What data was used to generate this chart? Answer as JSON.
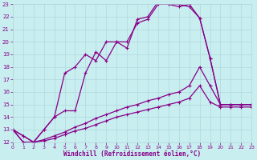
{
  "xlabel": "Windchill (Refroidissement éolien,°C)",
  "xlim": [
    0,
    23
  ],
  "ylim": [
    12,
    23
  ],
  "bg_color": "#c8eef0",
  "grid_color": "#b0d8dc",
  "line_color": "#880088",
  "line1_x": [
    0,
    1,
    2,
    3,
    4,
    5,
    6,
    7,
    8,
    9,
    10,
    11,
    12,
    13,
    14,
    15,
    16,
    17,
    18,
    19,
    20,
    21,
    22,
    23
  ],
  "line1_y": [
    13.0,
    12.5,
    12.0,
    13.0,
    14.0,
    17.5,
    18.0,
    19.0,
    18.5,
    20.0,
    20.0,
    19.5,
    21.8,
    22.0,
    23.2,
    23.0,
    22.8,
    23.0,
    21.9,
    18.7,
    15.0,
    15.0,
    15.0,
    15.0
  ],
  "line2_x": [
    0,
    1,
    2,
    3,
    4,
    5,
    6,
    7,
    8,
    9,
    10,
    11,
    12,
    13,
    14,
    15,
    16,
    17,
    18,
    19,
    20,
    21,
    22,
    23
  ],
  "line2_y": [
    13.0,
    12.5,
    12.0,
    13.0,
    14.0,
    14.5,
    14.5,
    17.5,
    19.2,
    18.5,
    20.0,
    20.0,
    21.5,
    21.8,
    23.0,
    23.0,
    23.0,
    22.8,
    21.9,
    18.7,
    15.0,
    15.0,
    15.0,
    15.0
  ],
  "line3_x": [
    0,
    1,
    2,
    3,
    4,
    5,
    6,
    7,
    8,
    9,
    10,
    11,
    12,
    13,
    14,
    15,
    16,
    17,
    18,
    19,
    20,
    21,
    22,
    23
  ],
  "line3_y": [
    13.0,
    12.0,
    12.0,
    12.2,
    12.5,
    12.8,
    13.2,
    13.5,
    13.9,
    14.2,
    14.5,
    14.8,
    15.0,
    15.3,
    15.5,
    15.8,
    16.0,
    16.5,
    18.0,
    16.5,
    15.0,
    15.0,
    15.0,
    15.0
  ],
  "line4_x": [
    0,
    1,
    2,
    3,
    4,
    5,
    6,
    7,
    8,
    9,
    10,
    11,
    12,
    13,
    14,
    15,
    16,
    17,
    18,
    19,
    20,
    21,
    22,
    23
  ],
  "line4_y": [
    13.0,
    12.0,
    12.0,
    12.1,
    12.3,
    12.6,
    12.9,
    13.1,
    13.4,
    13.7,
    14.0,
    14.2,
    14.4,
    14.6,
    14.8,
    15.0,
    15.2,
    15.5,
    16.5,
    15.2,
    14.8,
    14.8,
    14.8,
    14.8
  ],
  "xticks": [
    0,
    1,
    2,
    3,
    4,
    5,
    6,
    7,
    8,
    9,
    10,
    11,
    12,
    13,
    14,
    15,
    16,
    17,
    18,
    19,
    20,
    21,
    22,
    23
  ],
  "yticks": [
    12,
    13,
    14,
    15,
    16,
    17,
    18,
    19,
    20,
    21,
    22,
    23
  ]
}
